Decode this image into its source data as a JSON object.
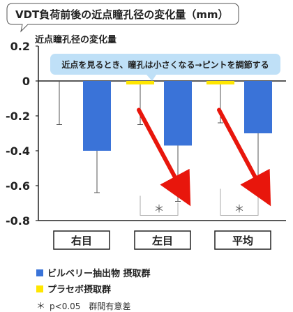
{
  "chart_data": {
    "type": "bar",
    "title": "VDT負荷前後の近点瞳孔径の変化量（mm）",
    "ylabel": "近点瞳孔径の変化量",
    "annotation": "近点を見るとき、瞳孔は小さくなる→ピントを調節する",
    "categories": [
      "右目",
      "左目",
      "平均"
    ],
    "ylim": [
      -0.8,
      0.2
    ],
    "yticks": [
      "0.2",
      "0",
      "-0.2",
      "-0.4",
      "-0.6",
      "-0.8"
    ],
    "series": [
      {
        "name": "プラセボ摂取群",
        "color": "#ffe600",
        "values": [
          0.0,
          -0.02,
          -0.02
        ],
        "error_low": [
          -0.25,
          -0.25,
          -0.24
        ],
        "error_high": [
          0.0,
          -0.02,
          -0.02
        ]
      },
      {
        "name": "ビルベリー抽出物 摂取群",
        "color": "#3a73d8",
        "values": [
          -0.4,
          -0.37,
          -0.3
        ],
        "error_low": [
          -0.64,
          -0.69,
          -0.65
        ],
        "error_high": [
          -0.4,
          -0.37,
          -0.3
        ]
      }
    ],
    "significance_marker": "＊",
    "significant_categories": [
      "左目",
      "平均"
    ]
  },
  "legend": [
    {
      "label": "ビルベリー抽出物 摂取群",
      "color": "#3a73d8"
    },
    {
      "label": "プラセボ摂取群",
      "color": "#ffe600"
    }
  ],
  "footnote": {
    "star": "＊",
    "text": "p<0.05　群間有意差"
  },
  "colors": {
    "arrow": "#e8160c",
    "callout": "#bfe0f7",
    "axis": "#222222"
  }
}
